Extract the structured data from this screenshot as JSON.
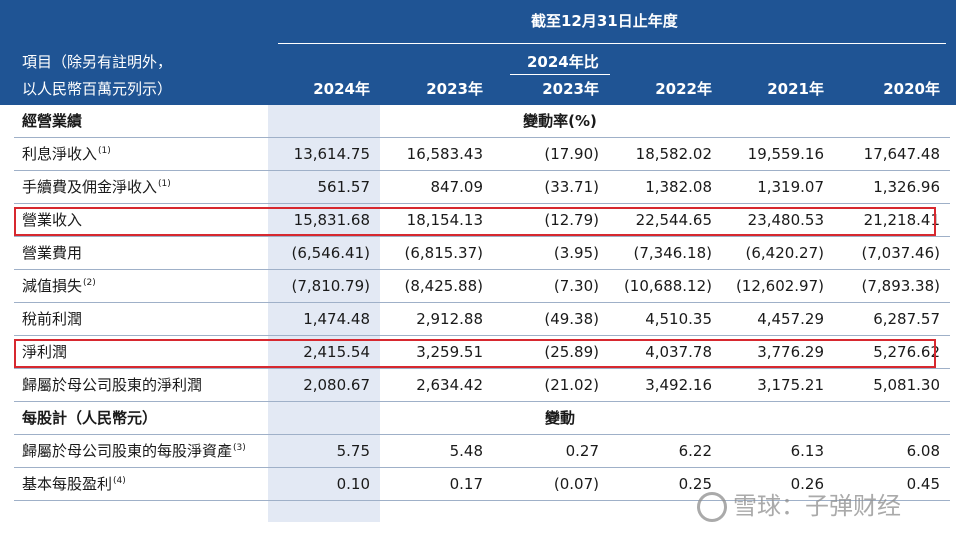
{
  "header": {
    "period_title": "截至12月31日止年度",
    "item_label_line1": "項目（除另有註明外，",
    "item_label_line2": "以人民幣百萬元列示）",
    "change_label_line1": "2024年比",
    "years": [
      "2024年",
      "2023年",
      "2023年",
      "2022年",
      "2021年",
      "2020年"
    ]
  },
  "sections": [
    {
      "title": "經營業績",
      "change_header": "變動率(%)",
      "rows": [
        {
          "label": "利息淨收入",
          "note": "(1)",
          "values": [
            "13,614.75",
            "16,583.43",
            "(17.90)",
            "18,582.02",
            "19,559.16",
            "17,647.48"
          ],
          "highlight": false
        },
        {
          "label": "手續費及佣金淨收入",
          "note": "(1)",
          "values": [
            "561.57",
            "847.09",
            "(33.71)",
            "1,382.08",
            "1,319.07",
            "1,326.96"
          ],
          "highlight": false
        },
        {
          "label": "營業收入",
          "note": "",
          "values": [
            "15,831.68",
            "18,154.13",
            "(12.79)",
            "22,544.65",
            "23,480.53",
            "21,218.41"
          ],
          "highlight": true
        },
        {
          "label": "營業費用",
          "note": "",
          "values": [
            "(6,546.41)",
            "(6,815.37)",
            "(3.95)",
            "(7,346.18)",
            "(6,420.27)",
            "(7,037.46)"
          ],
          "highlight": false
        },
        {
          "label": "減值損失",
          "note": "(2)",
          "values": [
            "(7,810.79)",
            "(8,425.88)",
            "(7.30)",
            "(10,688.12)",
            "(12,602.97)",
            "(7,893.38)"
          ],
          "highlight": false
        },
        {
          "label": "稅前利潤",
          "note": "",
          "values": [
            "1,474.48",
            "2,912.88",
            "(49.38)",
            "4,510.35",
            "4,457.29",
            "6,287.57"
          ],
          "highlight": false
        },
        {
          "label": "淨利潤",
          "note": "",
          "values": [
            "2,415.54",
            "3,259.51",
            "(25.89)",
            "4,037.78",
            "3,776.29",
            "5,276.62"
          ],
          "highlight": true
        },
        {
          "label": "歸屬於母公司股東的淨利潤",
          "note": "",
          "values": [
            "2,080.67",
            "2,634.42",
            "(21.02)",
            "3,492.16",
            "3,175.21",
            "5,081.30"
          ],
          "highlight": false
        }
      ]
    },
    {
      "title": "每股計（人民幣元）",
      "change_header": "變動",
      "rows": [
        {
          "label": "歸屬於母公司股東的每股淨資產",
          "note": "(3)",
          "values": [
            "5.75",
            "5.48",
            "0.27",
            "6.22",
            "6.13",
            "6.08"
          ],
          "highlight": false
        },
        {
          "label": "基本每股盈利",
          "note": "(4)",
          "values": [
            "0.10",
            "0.17",
            "(0.07)",
            "0.25",
            "0.26",
            "0.45"
          ],
          "highlight": false
        }
      ]
    }
  ],
  "watermark": {
    "text": "雪球：子弹财经"
  }
}
